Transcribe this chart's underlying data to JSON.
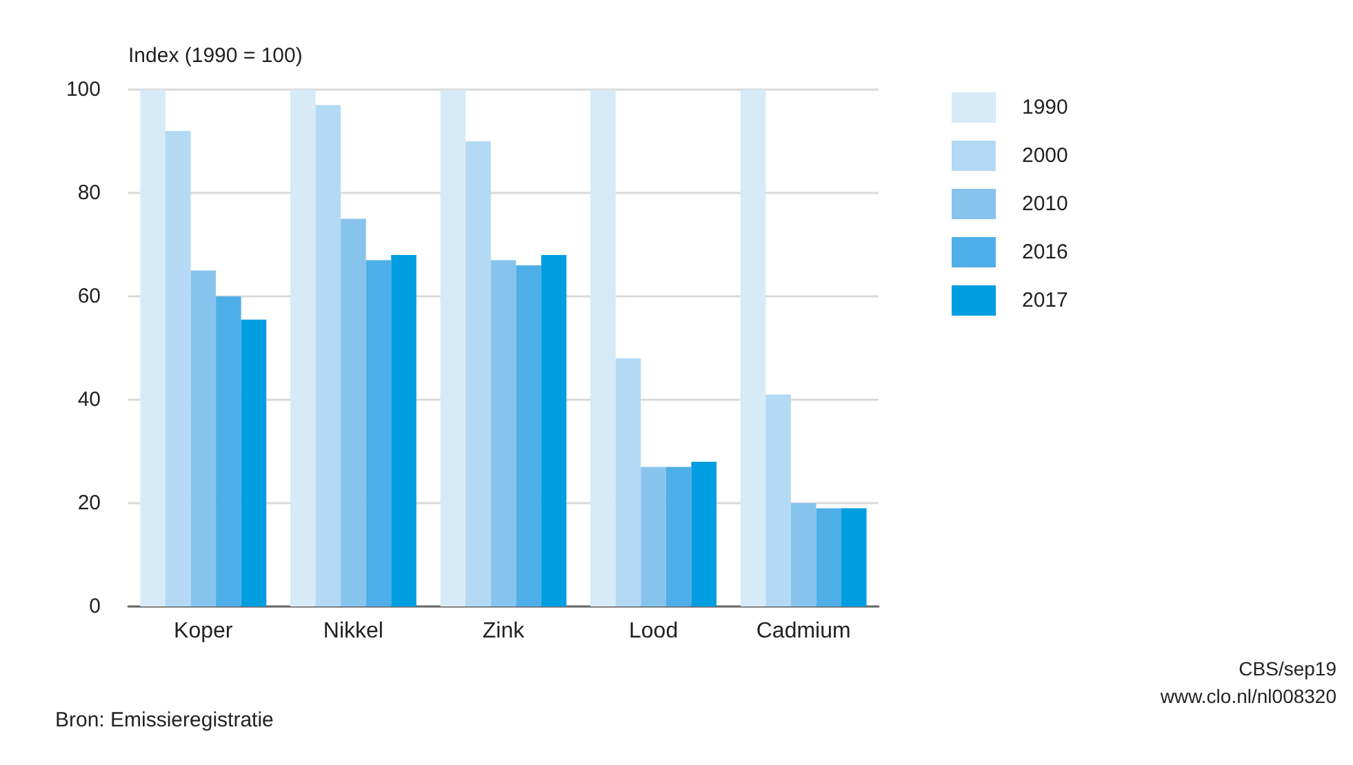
{
  "chart_data": {
    "type": "bar",
    "ylabel": "Index (1990 = 100)",
    "categories": [
      "Koper",
      "Nikkel",
      "Zink",
      "Lood",
      "Cadmium"
    ],
    "series": [
      {
        "name": "1990",
        "color": "#d6eaf8",
        "values": [
          100,
          100,
          100,
          100,
          100
        ]
      },
      {
        "name": "2000",
        "color": "#b3d9f5",
        "values": [
          92,
          97,
          90,
          48,
          41
        ]
      },
      {
        "name": "2010",
        "color": "#86c4ee",
        "values": [
          65,
          75,
          67,
          27,
          20
        ]
      },
      {
        "name": "2016",
        "color": "#4eaee8",
        "values": [
          60,
          67,
          66,
          27,
          19
        ]
      },
      {
        "name": "2017",
        "color": "#009ee0",
        "values": [
          55.5,
          68,
          68,
          28,
          19
        ]
      }
    ],
    "ylim": [
      0,
      100
    ],
    "yticks": [
      0,
      20,
      40,
      60,
      80,
      100
    ],
    "grid": "y",
    "legend": "right",
    "annotations": [
      "Bron: Emissieregistratie",
      "CBS/sep19",
      "www.clo.nl/nl008320"
    ]
  }
}
